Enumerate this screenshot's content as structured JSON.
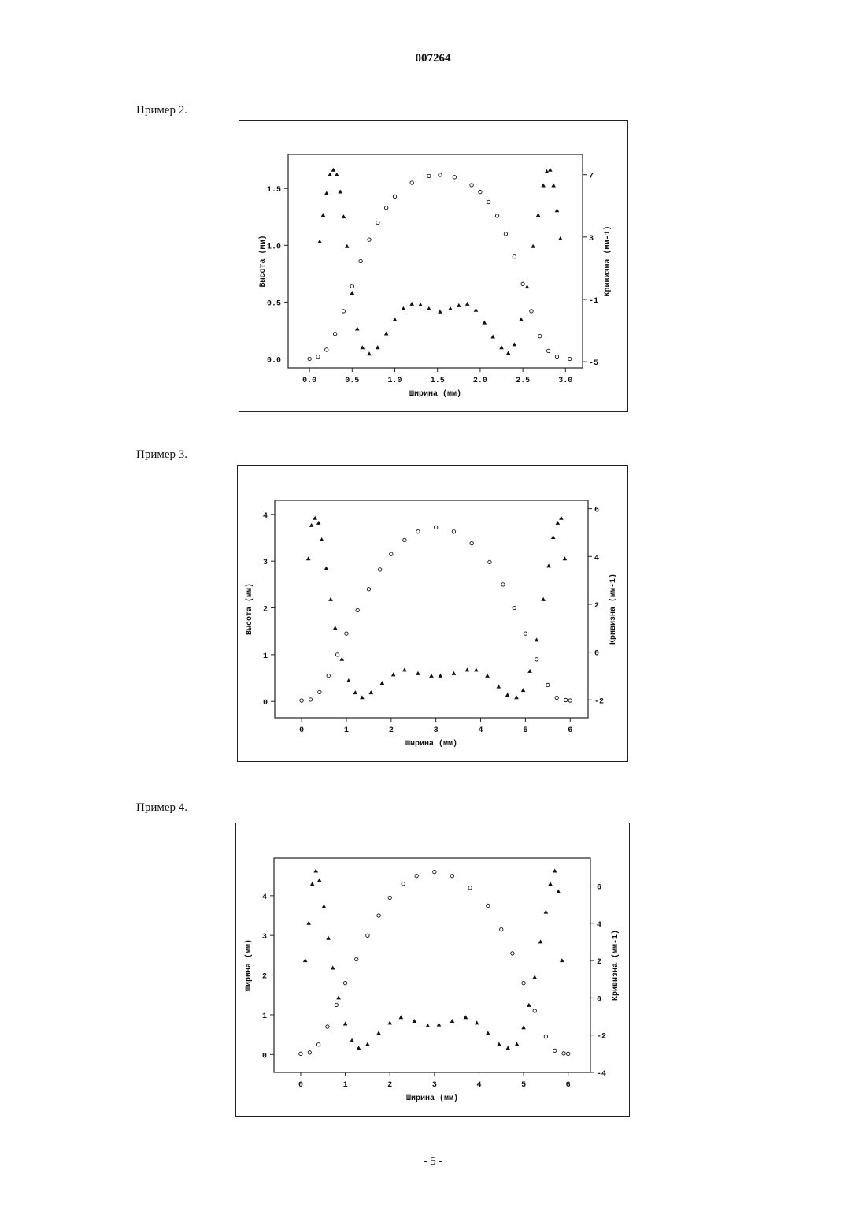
{
  "header": {
    "doc_number": "007264"
  },
  "footer": {
    "page_number": "- 5 -"
  },
  "examples": [
    {
      "label": "Пример 2."
    },
    {
      "label": "Пример 3."
    },
    {
      "label": "Пример 4."
    }
  ],
  "chart_data": [
    {
      "type": "scatter",
      "xlabel": "Ширина (мм)",
      "ylabel": "Высота (мм)",
      "y2label": "Кривизна (мм-1)",
      "xlim": [
        -0.25,
        3.2
      ],
      "ylim": [
        -0.08,
        1.8
      ],
      "y2lim": [
        -5.4,
        8.3
      ],
      "xticks": [
        0.0,
        0.5,
        1.0,
        1.5,
        2.0,
        2.5,
        3.0
      ],
      "xtick_labels": [
        "0.0",
        "0.5",
        "1.0",
        "1.5",
        "2.0",
        "2.5",
        "3.0"
      ],
      "yticks": [
        0.0,
        0.5,
        1.0,
        1.5
      ],
      "ytick_labels": [
        "0.0",
        "0.5",
        "1.0",
        "1.5"
      ],
      "y2ticks": [
        -5,
        -1,
        3,
        7
      ],
      "y2tick_labels": [
        "-5",
        "-1",
        "3",
        "7"
      ],
      "series": [
        {
          "marker": "circle",
          "axis": "left",
          "x": [
            0.0,
            0.1,
            0.2,
            0.3,
            0.4,
            0.5,
            0.6,
            0.7,
            0.8,
            0.9,
            1.0,
            1.2,
            1.4,
            1.53,
            1.7,
            1.9,
            2.0,
            2.1,
            2.2,
            2.3,
            2.4,
            2.5,
            2.6,
            2.7,
            2.8,
            2.9,
            3.05
          ],
          "y": [
            0.0,
            0.02,
            0.08,
            0.22,
            0.42,
            0.64,
            0.86,
            1.05,
            1.2,
            1.33,
            1.43,
            1.55,
            1.61,
            1.62,
            1.6,
            1.53,
            1.47,
            1.38,
            1.26,
            1.1,
            0.9,
            0.66,
            0.42,
            0.2,
            0.07,
            0.02,
            0.0
          ]
        },
        {
          "marker": "triangle",
          "axis": "right",
          "x": [
            0.12,
            0.16,
            0.2,
            0.24,
            0.28,
            0.32,
            0.36,
            0.4,
            0.44,
            0.5,
            0.56,
            0.62,
            0.7,
            0.8,
            0.9,
            1.0,
            1.1,
            1.2,
            1.3,
            1.4,
            1.53,
            1.65,
            1.75,
            1.85,
            1.95,
            2.05,
            2.15,
            2.25,
            2.33,
            2.4,
            2.48,
            2.55,
            2.62,
            2.68,
            2.74,
            2.78,
            2.82,
            2.86,
            2.9,
            2.94
          ],
          "y": [
            2.7,
            4.4,
            5.8,
            7.0,
            7.3,
            7.0,
            5.9,
            4.3,
            2.4,
            -0.6,
            -2.9,
            -4.1,
            -4.5,
            -4.1,
            -3.2,
            -2.3,
            -1.6,
            -1.3,
            -1.35,
            -1.6,
            -1.8,
            -1.6,
            -1.4,
            -1.3,
            -1.7,
            -2.5,
            -3.4,
            -4.1,
            -4.45,
            -3.9,
            -2.3,
            -0.2,
            2.4,
            4.4,
            6.3,
            7.2,
            7.3,
            6.3,
            4.7,
            2.9
          ]
        }
      ]
    },
    {
      "type": "scatter",
      "xlabel": "Ширина (мм)",
      "ylabel": "Высота (мм)",
      "y2label": "Кривизна (мм-1)",
      "xlim": [
        -0.6,
        6.4
      ],
      "ylim": [
        -0.35,
        4.3
      ],
      "y2lim": [
        -2.75,
        6.35
      ],
      "xticks": [
        0,
        1,
        2,
        3,
        4,
        5,
        6
      ],
      "xtick_labels": [
        "0",
        "1",
        "2",
        "3",
        "4",
        "5",
        "6"
      ],
      "yticks": [
        0,
        1,
        2,
        3,
        4
      ],
      "ytick_labels": [
        "0",
        "1",
        "2",
        "3",
        "4"
      ],
      "y2ticks": [
        -2,
        0,
        2,
        4,
        6
      ],
      "y2tick_labels": [
        "-2",
        "0",
        "2",
        "4",
        "6"
      ],
      "series": [
        {
          "marker": "circle",
          "axis": "left",
          "x": [
            0.0,
            0.2,
            0.4,
            0.6,
            0.8,
            1.0,
            1.25,
            1.5,
            1.75,
            2.0,
            2.3,
            2.6,
            3.0,
            3.4,
            3.8,
            4.2,
            4.5,
            4.75,
            5.0,
            5.25,
            5.5,
            5.7,
            5.9,
            6.0
          ],
          "y": [
            0.02,
            0.04,
            0.2,
            0.55,
            1.0,
            1.45,
            1.95,
            2.4,
            2.82,
            3.15,
            3.45,
            3.63,
            3.72,
            3.63,
            3.38,
            2.98,
            2.5,
            2.0,
            1.45,
            0.9,
            0.35,
            0.08,
            0.03,
            0.02
          ]
        },
        {
          "marker": "triangle",
          "axis": "right",
          "x": [
            0.15,
            0.22,
            0.3,
            0.38,
            0.45,
            0.55,
            0.65,
            0.75,
            0.9,
            1.05,
            1.2,
            1.35,
            1.55,
            1.8,
            2.05,
            2.3,
            2.6,
            2.9,
            3.1,
            3.4,
            3.7,
            3.9,
            4.15,
            4.4,
            4.6,
            4.8,
            4.95,
            5.1,
            5.25,
            5.4,
            5.52,
            5.62,
            5.72,
            5.8,
            5.88
          ],
          "y": [
            3.9,
            5.3,
            5.6,
            5.4,
            4.7,
            3.5,
            2.2,
            1.0,
            -0.3,
            -1.2,
            -1.7,
            -1.9,
            -1.7,
            -1.3,
            -0.95,
            -0.75,
            -0.9,
            -1.0,
            -1.0,
            -0.9,
            -0.75,
            -0.75,
            -1.0,
            -1.45,
            -1.8,
            -1.9,
            -1.6,
            -0.8,
            0.5,
            2.2,
            3.6,
            4.8,
            5.4,
            5.6,
            3.9
          ]
        }
      ]
    },
    {
      "type": "scatter",
      "xlabel": "Ширина (мм)",
      "ylabel": "Ширина (мм)",
      "y2label": "Кривизна (мм-1)",
      "xlim": [
        -0.6,
        6.5
      ],
      "ylim": [
        -0.45,
        4.95
      ],
      "y2lim": [
        -4.0,
        7.5
      ],
      "xticks": [
        0,
        1,
        2,
        3,
        4,
        5,
        6
      ],
      "xtick_labels": [
        "0",
        "1",
        "2",
        "3",
        "4",
        "5",
        "6"
      ],
      "yticks": [
        0,
        1,
        2,
        3,
        4
      ],
      "ytick_labels": [
        "0",
        "1",
        "2",
        "3",
        "4"
      ],
      "y2ticks": [
        -4,
        -2,
        0,
        2,
        4,
        6
      ],
      "y2tick_labels": [
        "-4",
        "-2",
        "0",
        "2",
        "4",
        "6"
      ],
      "series": [
        {
          "marker": "circle",
          "axis": "left",
          "x": [
            0.0,
            0.2,
            0.4,
            0.6,
            0.8,
            1.0,
            1.25,
            1.5,
            1.75,
            2.0,
            2.3,
            2.6,
            3.0,
            3.4,
            3.8,
            4.2,
            4.5,
            4.75,
            5.0,
            5.25,
            5.5,
            5.7,
            5.9,
            6.0
          ],
          "y": [
            0.02,
            0.05,
            0.25,
            0.7,
            1.25,
            1.8,
            2.4,
            3.0,
            3.5,
            3.95,
            4.3,
            4.5,
            4.6,
            4.5,
            4.2,
            3.75,
            3.15,
            2.55,
            1.8,
            1.1,
            0.45,
            0.1,
            0.03,
            0.02
          ]
        },
        {
          "marker": "triangle",
          "axis": "right",
          "x": [
            0.1,
            0.18,
            0.26,
            0.34,
            0.42,
            0.52,
            0.62,
            0.72,
            0.85,
            1.0,
            1.15,
            1.3,
            1.5,
            1.75,
            2.0,
            2.25,
            2.55,
            2.85,
            3.1,
            3.4,
            3.7,
            3.95,
            4.2,
            4.45,
            4.65,
            4.85,
            5.0,
            5.12,
            5.25,
            5.38,
            5.5,
            5.6,
            5.7,
            5.78,
            5.86
          ],
          "y": [
            2.0,
            4.0,
            6.1,
            6.8,
            6.3,
            4.9,
            3.2,
            1.6,
            0.0,
            -1.4,
            -2.3,
            -2.7,
            -2.5,
            -1.9,
            -1.35,
            -1.05,
            -1.25,
            -1.5,
            -1.45,
            -1.25,
            -1.05,
            -1.35,
            -1.9,
            -2.5,
            -2.7,
            -2.5,
            -1.6,
            -0.4,
            1.1,
            3.0,
            4.6,
            6.1,
            6.8,
            5.7,
            2.0
          ]
        }
      ]
    }
  ]
}
